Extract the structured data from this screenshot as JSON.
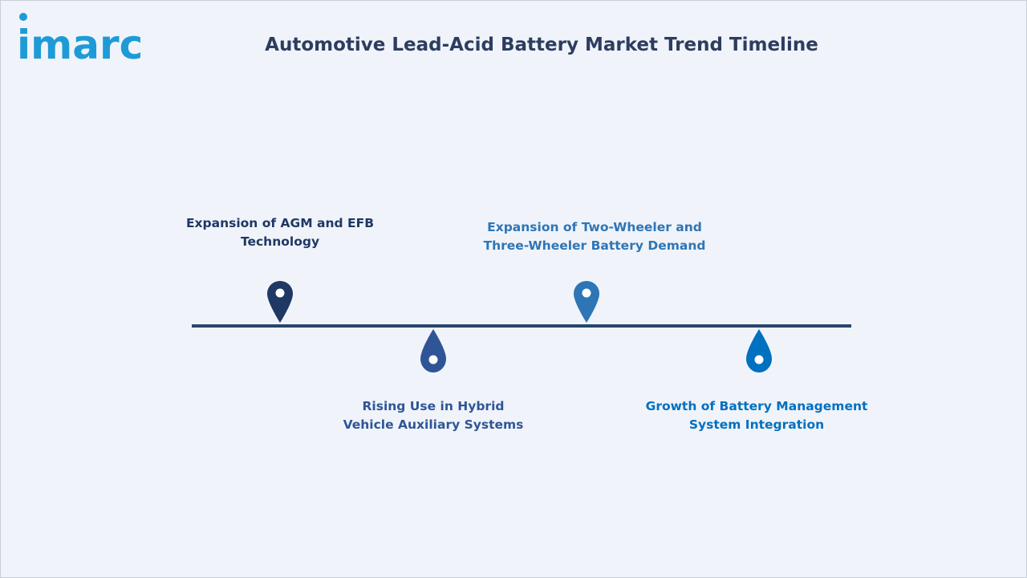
{
  "brand": {
    "logo_text": "imarc",
    "logo_color": "#1e9bd7"
  },
  "header": {
    "title": "Automotive Lead-Acid Battery Market Trend Timeline"
  },
  "timeline": {
    "line_color": "#27466b",
    "milestones": [
      {
        "label": "Expansion of AGM and EFB\nTechnology",
        "position": "above",
        "color": "#1f3864",
        "icon": "map-pin-icon"
      },
      {
        "label": "Rising Use in Hybrid\nVehicle Auxiliary Systems",
        "position": "below",
        "color": "#2f5597",
        "icon": "drop-pin-icon"
      },
      {
        "label": "Expansion of Two-Wheeler and\nThree-Wheeler Battery Demand",
        "position": "above",
        "color": "#2e75b6",
        "icon": "map-pin-icon"
      },
      {
        "label": "Growth of Battery Management\nSystem Integration",
        "position": "below",
        "color": "#0070c0",
        "icon": "drop-pin-icon"
      }
    ]
  }
}
